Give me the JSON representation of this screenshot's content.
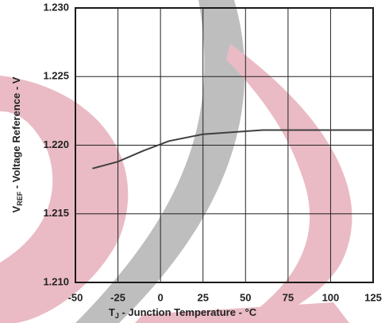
{
  "chart_data": {
    "type": "line",
    "x_label": {
      "symbol": "T",
      "subscript": "J",
      "text": " - Junction Temperature -  °C"
    },
    "y_label": {
      "symbol": "V",
      "subscript": "REF",
      "text": " - Voltage Reference - V"
    },
    "x": [
      -40,
      -25,
      -10,
      5,
      25,
      60,
      125
    ],
    "series": [
      {
        "color": "#404040",
        "values": [
          1.2183,
          1.2188,
          1.2196,
          1.2203,
          1.2208,
          1.2211,
          1.2211
        ]
      }
    ],
    "xlim": [
      -50,
      125
    ],
    "xticks": [
      -50,
      -25,
      0,
      25,
      50,
      75,
      100,
      125
    ],
    "ylim": [
      1.21,
      1.23
    ],
    "yticks": [
      {
        "value": 1.21,
        "label": "1.210"
      },
      1.215,
      {
        "value": 1.22,
        "label": "1.220"
      },
      1.225,
      {
        "value": 1.23,
        "label": "1.230"
      }
    ],
    "grid": true
  }
}
